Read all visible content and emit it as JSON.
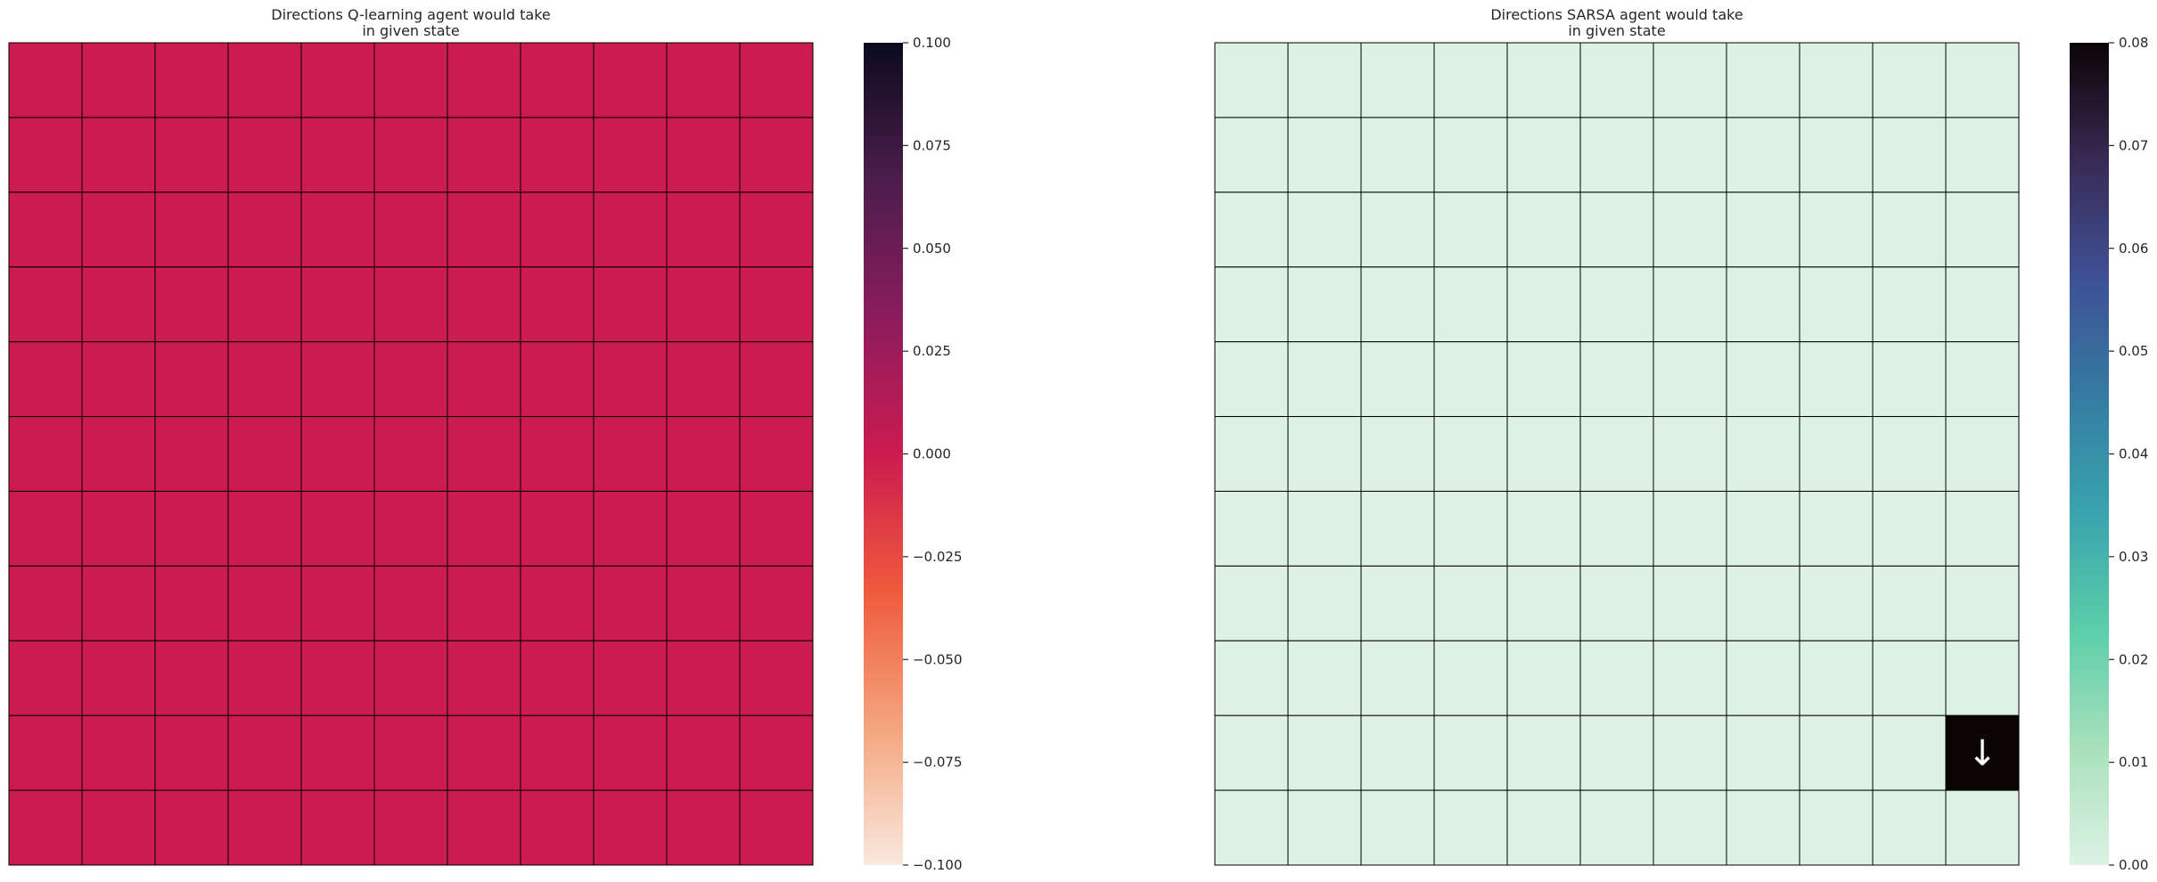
{
  "chart_data": [
    {
      "type": "heatmap",
      "title_lines": [
        "Directions Q-learning agent would take",
        "in given state"
      ],
      "rows": 11,
      "cols": 11,
      "cell_values": [
        [
          0,
          0,
          0,
          0,
          0,
          0,
          0,
          0,
          0,
          0,
          0
        ],
        [
          0,
          0,
          0,
          0,
          0,
          0,
          0,
          0,
          0,
          0,
          0
        ],
        [
          0,
          0,
          0,
          0,
          0,
          0,
          0,
          0,
          0,
          0,
          0
        ],
        [
          0,
          0,
          0,
          0,
          0,
          0,
          0,
          0,
          0,
          0,
          0
        ],
        [
          0,
          0,
          0,
          0,
          0,
          0,
          0,
          0,
          0,
          0,
          0
        ],
        [
          0,
          0,
          0,
          0,
          0,
          0,
          0,
          0,
          0,
          0,
          0
        ],
        [
          0,
          0,
          0,
          0,
          0,
          0,
          0,
          0,
          0,
          0,
          0
        ],
        [
          0,
          0,
          0,
          0,
          0,
          0,
          0,
          0,
          0,
          0,
          0
        ],
        [
          0,
          0,
          0,
          0,
          0,
          0,
          0,
          0,
          0,
          0,
          0
        ],
        [
          0,
          0,
          0,
          0,
          0,
          0,
          0,
          0,
          0,
          0,
          0
        ],
        [
          0,
          0,
          0,
          0,
          0,
          0,
          0,
          0,
          0,
          0,
          0
        ]
      ],
      "annotations": [],
      "colorbar": {
        "range": [
          -0.1,
          0.1
        ],
        "ticks": [
          -0.1,
          -0.075,
          -0.05,
          -0.025,
          0.0,
          0.025,
          0.05,
          0.075,
          0.1
        ],
        "tick_labels": [
          "−0.100",
          "−0.075",
          "−0.050",
          "−0.025",
          "0.000",
          "0.025",
          "0.050",
          "0.075",
          "0.100"
        ],
        "colormap": "rocket_r",
        "stops": [
          "#fae8de",
          "#f5a57e",
          "#ef5a3c",
          "#cb1b4f",
          "#8b1c5d",
          "#4c1d4b",
          "#0b0b1e"
        ]
      },
      "grid": true
    },
    {
      "type": "heatmap",
      "title_lines": [
        "Directions SARSA agent would take",
        "in given state"
      ],
      "rows": 11,
      "cols": 11,
      "cell_values": [
        [
          0,
          0,
          0,
          0,
          0,
          0,
          0,
          0,
          0,
          0,
          0
        ],
        [
          0,
          0,
          0,
          0,
          0,
          0,
          0,
          0,
          0,
          0,
          0
        ],
        [
          0,
          0,
          0,
          0,
          0,
          0,
          0,
          0,
          0,
          0,
          0
        ],
        [
          0,
          0,
          0,
          0,
          0,
          0,
          0,
          0,
          0,
          0,
          0
        ],
        [
          0,
          0,
          0,
          0,
          0,
          0,
          0,
          0,
          0,
          0,
          0
        ],
        [
          0,
          0,
          0,
          0,
          0,
          0,
          0,
          0,
          0,
          0,
          0
        ],
        [
          0,
          0,
          0,
          0,
          0,
          0,
          0,
          0,
          0,
          0,
          0
        ],
        [
          0,
          0,
          0,
          0,
          0,
          0,
          0,
          0,
          0,
          0,
          0
        ],
        [
          0,
          0,
          0,
          0,
          0,
          0,
          0,
          0,
          0,
          0,
          0
        ],
        [
          0,
          0,
          0,
          0,
          0,
          0,
          0,
          0,
          0,
          0,
          0.08
        ],
        [
          0,
          0,
          0,
          0,
          0,
          0,
          0,
          0,
          0,
          0,
          0
        ]
      ],
      "annotations": [
        {
          "row": 9,
          "col": 10,
          "text": "↓"
        }
      ],
      "colorbar": {
        "range": [
          0,
          0.08
        ],
        "ticks": [
          0.0,
          0.01,
          0.02,
          0.03,
          0.04,
          0.05,
          0.06,
          0.07,
          0.08
        ],
        "tick_labels": [
          "0.00",
          "0.01",
          "0.02",
          "0.03",
          "0.04",
          "0.05",
          "0.06",
          "0.07",
          "0.08"
        ],
        "colormap": "mako_r",
        "stops": [
          "#ddf2e4",
          "#a8e1bc",
          "#5ccea9",
          "#38a4ad",
          "#357ba2",
          "#3e5095",
          "#382a54",
          "#0b0405"
        ]
      },
      "grid": true
    }
  ]
}
